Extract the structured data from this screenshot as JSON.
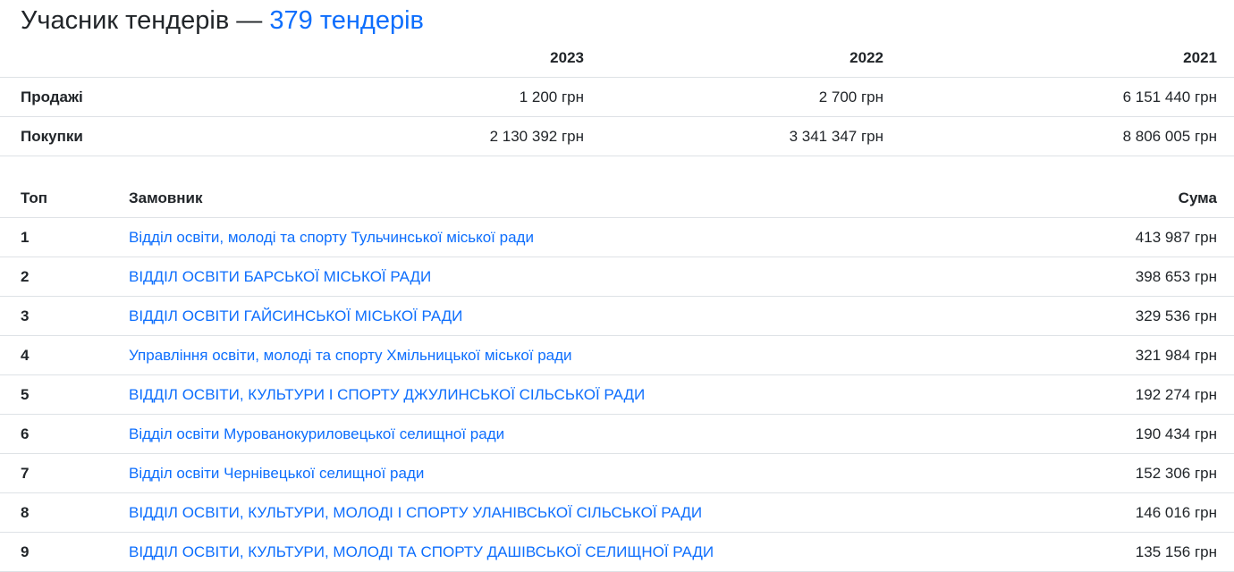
{
  "title": {
    "prefix": "Учасник тендерів — ",
    "link": "379 тендерів"
  },
  "summary": {
    "years": [
      "2023",
      "2022",
      "2021"
    ],
    "rows": [
      {
        "label": "Продажі",
        "values": [
          "1 200 грн",
          "2 700 грн",
          "6 151 440 грн"
        ]
      },
      {
        "label": "Покупки",
        "values": [
          "2 130 392 грн",
          "3 341 347 грн",
          "8 806 005 грн"
        ]
      }
    ]
  },
  "top": {
    "headers": {
      "rank": "Топ",
      "customer": "Замовник",
      "sum": "Сума"
    },
    "rows": [
      {
        "rank": "1",
        "customer": "Відділ освіти, молоді та спорту Тульчинської міської ради",
        "sum": "413 987 грн"
      },
      {
        "rank": "2",
        "customer": "ВІДДІЛ ОСВІТИ БАРСЬКОЇ МІСЬКОЇ РАДИ",
        "sum": "398 653 грн"
      },
      {
        "rank": "3",
        "customer": "ВІДДІЛ ОСВІТИ ГАЙСИНСЬКОЇ МІСЬКОЇ РАДИ",
        "sum": "329 536 грн"
      },
      {
        "rank": "4",
        "customer": "Управління освіти, молоді та спорту Хмільницької міської ради",
        "sum": "321 984 грн"
      },
      {
        "rank": "5",
        "customer": "ВІДДІЛ ОСВІТИ, КУЛЬТУРИ І СПОРТУ ДЖУЛИНСЬКОЇ СІЛЬСЬКОЇ РАДИ",
        "sum": "192 274 грн"
      },
      {
        "rank": "6",
        "customer": "Відділ освіти Мурованокуриловецької селищної ради",
        "sum": "190 434 грн"
      },
      {
        "rank": "7",
        "customer": "Відділ освіти Чернівецької селищної ради",
        "sum": "152 306 грн"
      },
      {
        "rank": "8",
        "customer": "ВІДДІЛ ОСВІТИ, КУЛЬТУРИ, МОЛОДІ І СПОРТУ УЛАНІВСЬКОЇ СІЛЬСЬКОЇ РАДИ",
        "sum": "146 016 грн"
      },
      {
        "rank": "9",
        "customer": "ВІДДІЛ ОСВІТИ, КУЛЬТУРИ, МОЛОДІ ТА СПОРТУ ДАШІВСЬКОЇ СЕЛИЩНОЇ РАДИ",
        "sum": "135 156 грн"
      }
    ]
  },
  "colors": {
    "link": "#0d6efd",
    "text": "#212529",
    "border": "#dee2e6"
  }
}
